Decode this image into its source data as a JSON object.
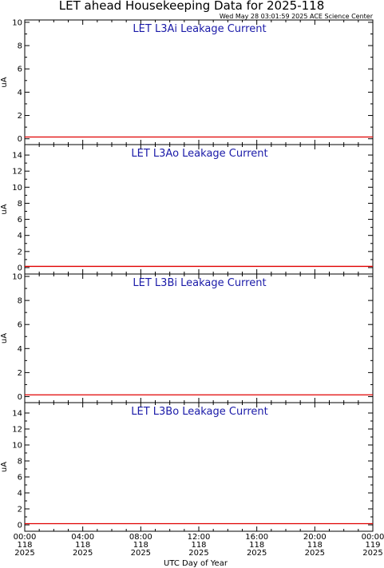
{
  "title": "LET ahead Housekeeping Data for 2025-118",
  "timestamp": "Wed May 28 03:01:59 2025 ACE Science Center",
  "xlabel": "UTC Day of Year",
  "x_ticks": [
    {
      "time": "00:00",
      "doy": "118",
      "year": "2025"
    },
    {
      "time": "04:00",
      "doy": "118",
      "year": "2025"
    },
    {
      "time": "08:00",
      "doy": "118",
      "year": "2025"
    },
    {
      "time": "12:00",
      "doy": "118",
      "year": "2025"
    },
    {
      "time": "16:00",
      "doy": "118",
      "year": "2025"
    },
    {
      "time": "20:00",
      "doy": "118",
      "year": "2025"
    },
    {
      "time": "00:00",
      "doy": "119",
      "year": "2025"
    }
  ],
  "colors": {
    "panel_title": "#1a1aa8",
    "series": "#e00000",
    "axes": "#000000"
  },
  "chart_data": [
    {
      "type": "line",
      "title": "LET L3Ai Leakage Current",
      "ylabel": "uA",
      "xlim": [
        0,
        24
      ],
      "ylim": [
        -0.5,
        10.2
      ],
      "yticks": [
        0,
        2,
        4,
        6,
        8,
        10
      ],
      "series": [
        {
          "x": [
            0,
            24
          ],
          "values": [
            0.15,
            0.15
          ]
        }
      ]
    },
    {
      "type": "line",
      "title": "LET L3Ao Leakage Current",
      "ylabel": "uA",
      "xlim": [
        0,
        24
      ],
      "ylim": [
        -0.8,
        15.3
      ],
      "yticks": [
        0,
        2,
        4,
        6,
        8,
        10,
        12,
        14
      ],
      "series": [
        {
          "x": [
            0,
            24
          ],
          "values": [
            0.15,
            0.15
          ]
        }
      ]
    },
    {
      "type": "line",
      "title": "LET L3Bi Leakage Current",
      "ylabel": "uA",
      "xlim": [
        0,
        24
      ],
      "ylim": [
        -0.5,
        10.2
      ],
      "yticks": [
        0,
        2,
        4,
        6,
        8,
        10
      ],
      "series": [
        {
          "x": [
            0,
            24
          ],
          "values": [
            0.15,
            0.15
          ]
        }
      ]
    },
    {
      "type": "line",
      "title": "LET L3Bo Leakage Current",
      "ylabel": "uA",
      "xlim": [
        0,
        24
      ],
      "ylim": [
        -0.8,
        15.3
      ],
      "yticks": [
        0,
        2,
        4,
        6,
        8,
        10,
        12,
        14
      ],
      "series": [
        {
          "x": [
            0,
            24
          ],
          "values": [
            0.15,
            0.15
          ]
        }
      ]
    }
  ]
}
